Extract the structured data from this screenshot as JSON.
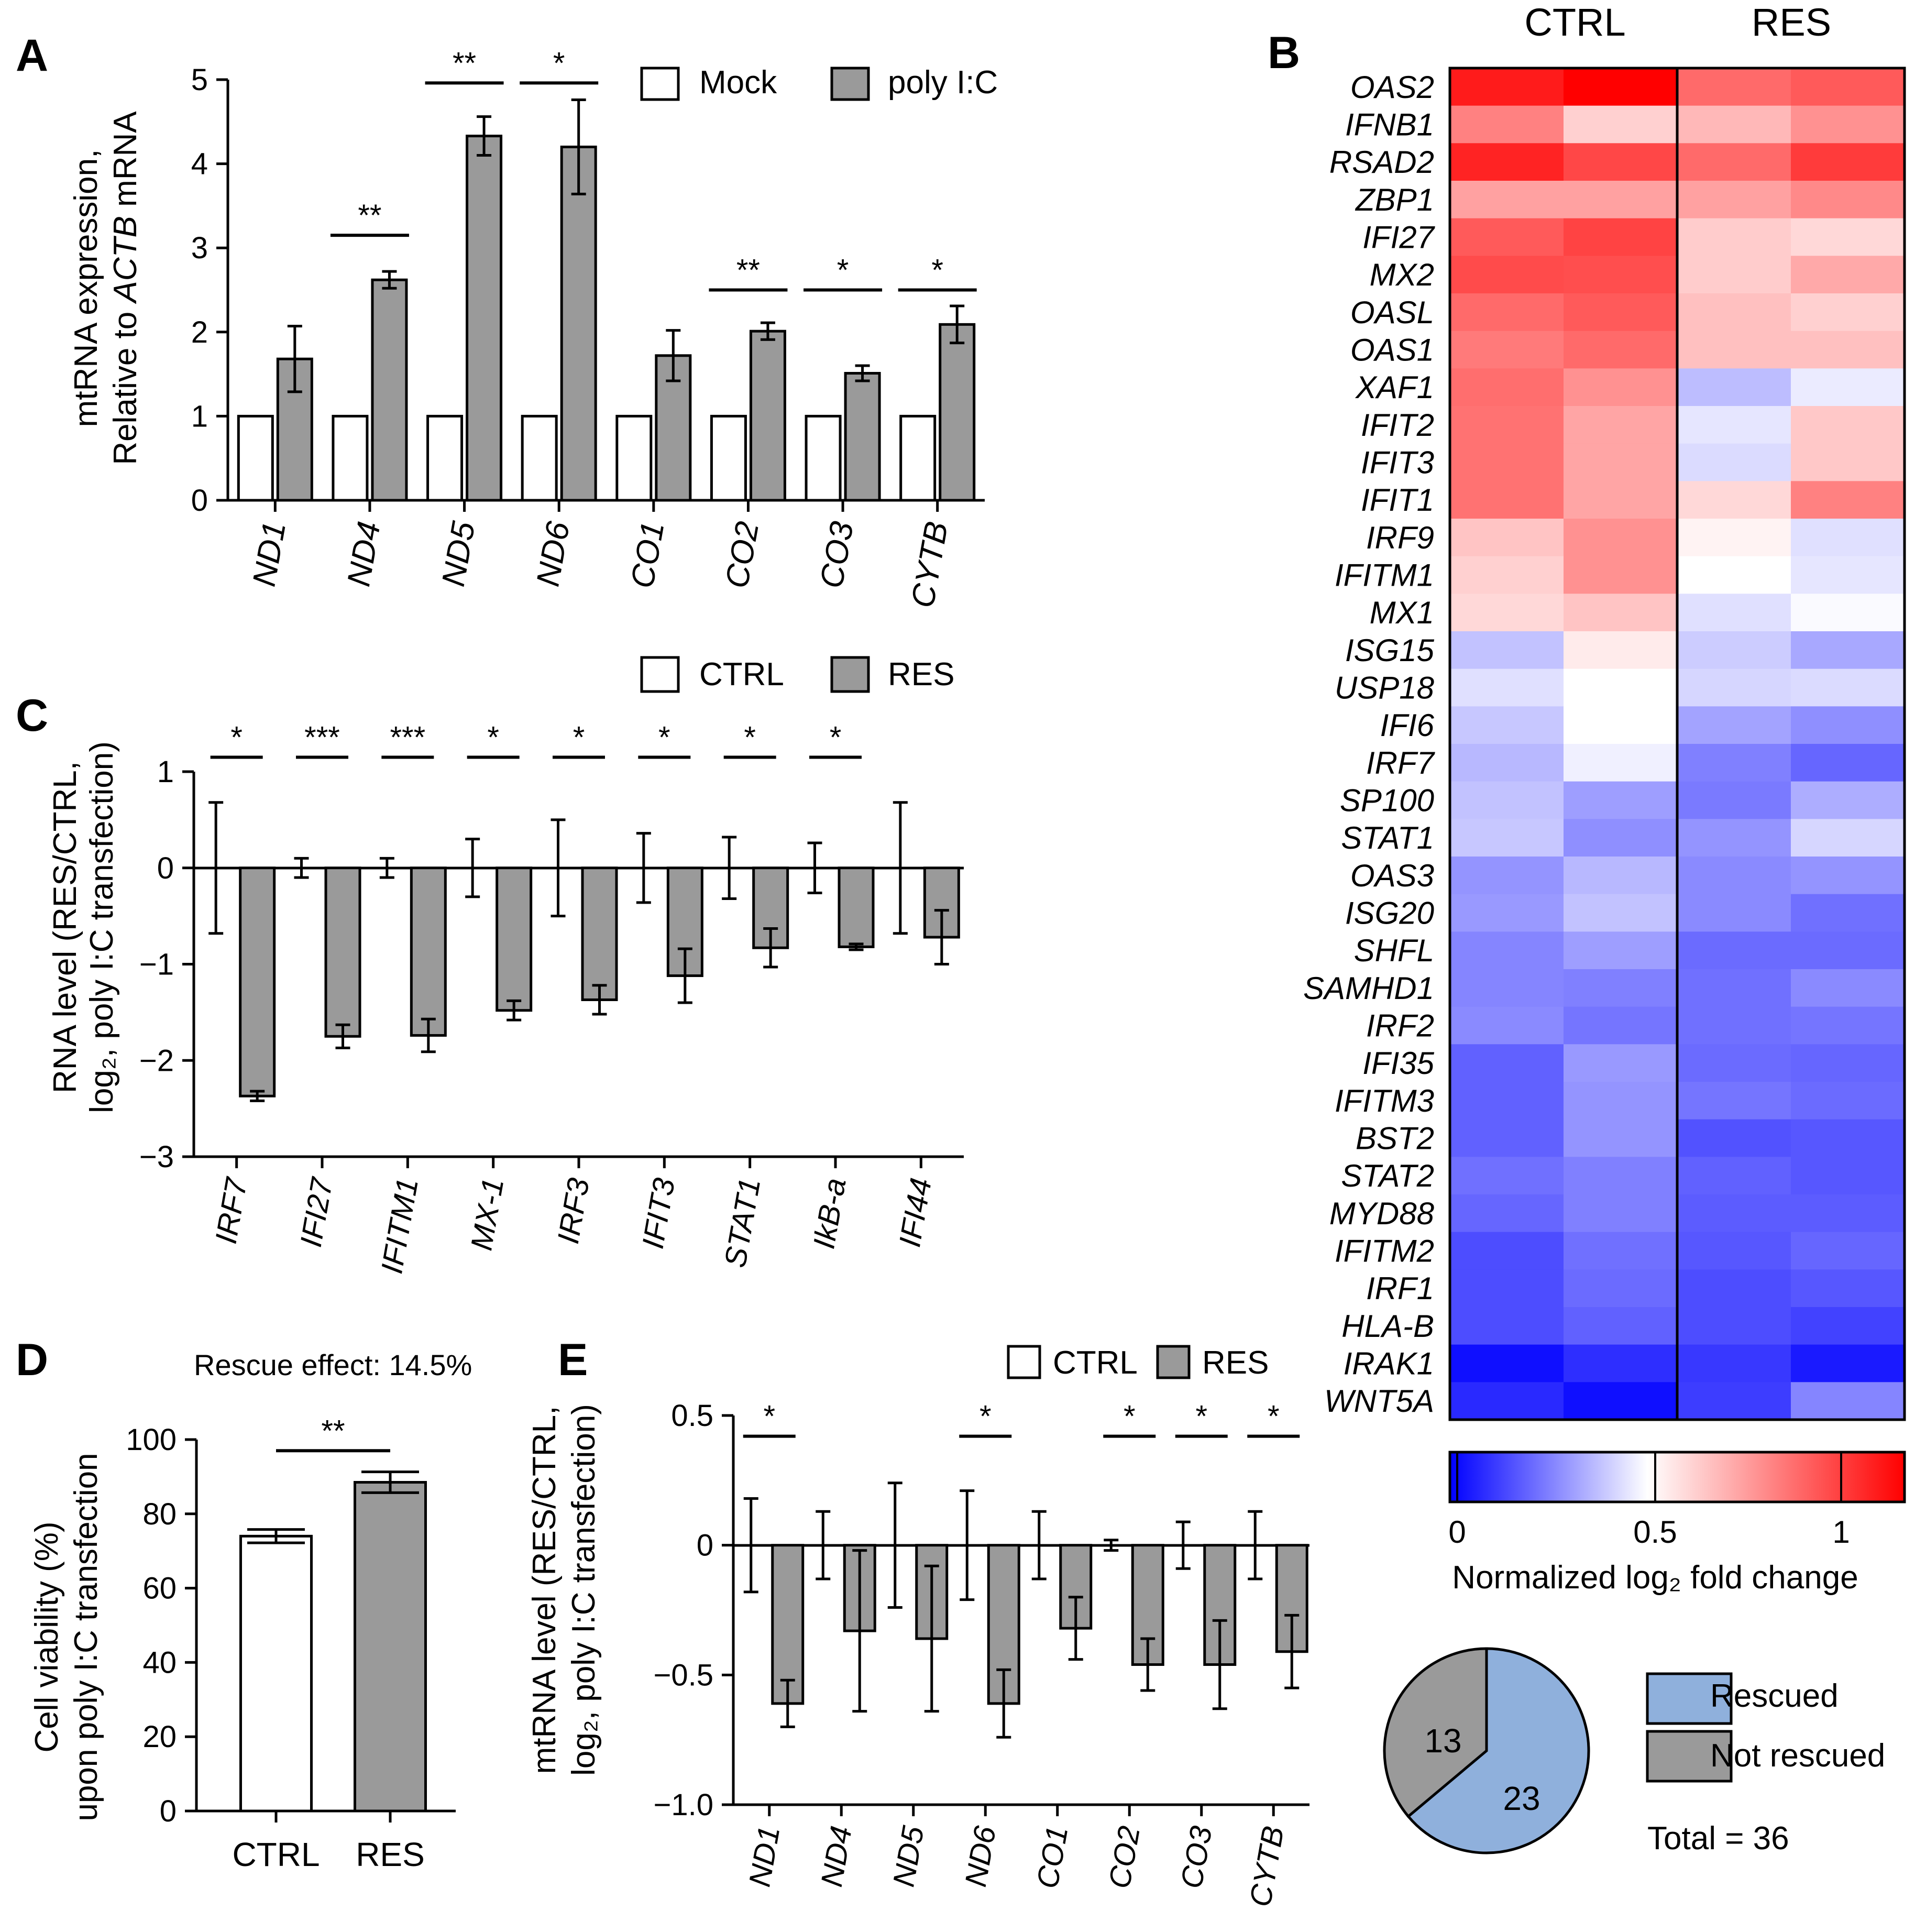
{
  "colors": {
    "white_bar": "#ffffff",
    "grey_bar": "#9a9a9a",
    "heat_low": "#0000ff",
    "heat_mid": "#ffffff",
    "heat_high": "#ff0000",
    "pie_rescued": "#8fb0dc",
    "pie_not_rescued": "#9a9a9a"
  },
  "chart_data": [
    {
      "panel": "A",
      "type": "bar",
      "ylabel_line1": "mtRNA expression,",
      "ylabel_line2_prefix": "Relative to ",
      "ylabel_line2_italic": "ACTB",
      "ylabel_line2_suffix": " mRNA",
      "ylim": [
        0,
        5
      ],
      "yticks": [
        "0",
        "1",
        "2",
        "3",
        "4",
        "5"
      ],
      "categories": [
        "ND1",
        "ND4",
        "ND5",
        "ND6",
        "CO1",
        "CO2",
        "CO3",
        "CYTB"
      ],
      "legend": [
        "Mock",
        "poly I:C"
      ],
      "series": [
        {
          "name": "Mock",
          "values": [
            1,
            1,
            1,
            1,
            1,
            1,
            1,
            1
          ],
          "errors": [
            0,
            0,
            0,
            0,
            0,
            0,
            0,
            0
          ]
        },
        {
          "name": "poly I:C",
          "values": [
            1.68,
            2.62,
            4.33,
            4.2,
            1.72,
            2.01,
            1.51,
            2.09
          ],
          "errors": [
            0.39,
            0.1,
            0.23,
            0.56,
            0.3,
            0.1,
            0.09,
            0.22
          ]
        }
      ],
      "significance": [
        "",
        "**",
        "**",
        "*",
        "",
        "**",
        "*",
        "*"
      ],
      "significance_levels": [
        0,
        3.15,
        4.96,
        4.96,
        0,
        2.5,
        2.5,
        2.5
      ]
    },
    {
      "panel": "B",
      "type": "heatmap",
      "column_groups": [
        "CTRL",
        "RES"
      ],
      "rows": [
        "OAS2",
        "IFNB1",
        "RSAD2",
        "ZBP1",
        "IFI27",
        "MX2",
        "OASL",
        "OAS1",
        "XAF1",
        "IFIT2",
        "IFIT3",
        "IFIT1",
        "IRF9",
        "IFITM1",
        "MX1",
        "ISG15",
        "USP18",
        "IFI6",
        "IRF7",
        "SP100",
        "STAT1",
        "OAS3",
        "ISG20",
        "SHFL",
        "SAMHD1",
        "IRF2",
        "IFI35",
        "IFITM3",
        "BST2",
        "STAT2",
        "MYD88",
        "IFITM2",
        "IRF1",
        "HLA-B",
        "IRAK1",
        "WNT5A"
      ],
      "values": [
        [
          1.08,
          1.15,
          0.88,
          0.92
        ],
        [
          0.82,
          0.62,
          0.68,
          0.78
        ],
        [
          1.06,
          0.97,
          0.88,
          1.0
        ],
        [
          0.74,
          0.74,
          0.74,
          0.8
        ],
        [
          0.92,
          0.98,
          0.63,
          0.6
        ],
        [
          0.96,
          0.95,
          0.63,
          0.72
        ],
        [
          0.88,
          0.92,
          0.66,
          0.62
        ],
        [
          0.84,
          0.88,
          0.66,
          0.66
        ],
        [
          0.87,
          0.78,
          0.37,
          0.46
        ],
        [
          0.86,
          0.73,
          0.45,
          0.64
        ],
        [
          0.86,
          0.73,
          0.43,
          0.64
        ],
        [
          0.86,
          0.73,
          0.6,
          0.82
        ],
        [
          0.65,
          0.78,
          0.53,
          0.44
        ],
        [
          0.62,
          0.78,
          0.5,
          0.45
        ],
        [
          0.6,
          0.65,
          0.44,
          0.49
        ],
        [
          0.38,
          0.55,
          0.4,
          0.33
        ],
        [
          0.44,
          0.5,
          0.42,
          0.43
        ],
        [
          0.39,
          0.5,
          0.32,
          0.28
        ],
        [
          0.36,
          0.47,
          0.25,
          0.2
        ],
        [
          0.38,
          0.31,
          0.24,
          0.34
        ],
        [
          0.39,
          0.28,
          0.29,
          0.42
        ],
        [
          0.29,
          0.36,
          0.27,
          0.29
        ],
        [
          0.3,
          0.38,
          0.27,
          0.22
        ],
        [
          0.26,
          0.31,
          0.21,
          0.21
        ],
        [
          0.26,
          0.25,
          0.22,
          0.27
        ],
        [
          0.27,
          0.23,
          0.22,
          0.23
        ],
        [
          0.19,
          0.3,
          0.21,
          0.2
        ],
        [
          0.19,
          0.29,
          0.23,
          0.21
        ],
        [
          0.19,
          0.29,
          0.16,
          0.17
        ],
        [
          0.22,
          0.25,
          0.19,
          0.17
        ],
        [
          0.2,
          0.25,
          0.18,
          0.18
        ],
        [
          0.15,
          0.22,
          0.17,
          0.2
        ],
        [
          0.15,
          0.21,
          0.15,
          0.17
        ],
        [
          0.15,
          0.19,
          0.15,
          0.13
        ],
        [
          0.03,
          0.09,
          0.11,
          0.05
        ],
        [
          0.08,
          0.03,
          0.12,
          0.26
        ]
      ],
      "colorbar_ticks": [
        "0",
        "0.5",
        "1"
      ],
      "colorbar_range": [
        0,
        1.15
      ],
      "colorbar_label": "Normalized log₂ fold change"
    },
    {
      "panel": "B-pie",
      "type": "pie",
      "slices": [
        {
          "name": "Rescued",
          "value": 23
        },
        {
          "name": "Not rescued",
          "value": 13
        }
      ],
      "total_label": "Total = 36"
    },
    {
      "panel": "C",
      "type": "bar",
      "ylabel_line1": "RNA level (RES/CTRL,",
      "ylabel_line2": "log₂, poly I:C transfection)",
      "ylim": [
        -3,
        1
      ],
      "yticks": [
        "−3",
        "−2",
        "−1",
        "0",
        "1"
      ],
      "categories": [
        "IRF7",
        "IFI27",
        "IFITM1",
        "MX-1",
        "IRF3",
        "IFIT3",
        "STAT1",
        "IkB-a",
        "IFI44"
      ],
      "legend": [
        "CTRL",
        "RES"
      ],
      "series": [
        {
          "name": "CTRL",
          "values": [
            0,
            0,
            0,
            0,
            0,
            0,
            0,
            0,
            0
          ],
          "errors": [
            0.68,
            0.1,
            0.1,
            0.3,
            0.5,
            0.36,
            0.32,
            0.26,
            0.68
          ]
        },
        {
          "name": "RES",
          "values": [
            -2.37,
            -1.75,
            -1.74,
            -1.48,
            -1.37,
            -1.12,
            -0.83,
            -0.82,
            -0.72
          ],
          "errors": [
            0.05,
            0.12,
            0.17,
            0.1,
            0.15,
            0.28,
            0.2,
            0.03,
            0.28
          ]
        }
      ],
      "significance": [
        "*",
        "***",
        "***",
        "*",
        "*",
        "*",
        "*",
        "*",
        ""
      ],
      "significance_level": 1.15
    },
    {
      "panel": "D",
      "type": "bar",
      "title": "Rescue effect: 14.5%",
      "ylabel_line1": "Cell viability (%)",
      "ylabel_line2": "upon poly I:C transfection",
      "ylim": [
        0,
        100
      ],
      "yticks": [
        "0",
        "20",
        "40",
        "60",
        "80",
        "100"
      ],
      "categories": [
        "CTRL",
        "RES"
      ],
      "values": [
        74,
        88.5
      ],
      "errors": [
        1.8,
        2.8
      ],
      "significance": "**",
      "significance_level": 97
    },
    {
      "panel": "E",
      "type": "bar",
      "ylabel_line1": "mtRNA level (RES/CTRL,",
      "ylabel_line2": "log₂, poly I:C transfection)",
      "ylim": [
        -1.0,
        0.5
      ],
      "yticks": [
        "−1.0",
        "−0.5",
        "0",
        "0.5"
      ],
      "categories": [
        "ND1",
        "ND4",
        "ND5",
        "ND6",
        "CO1",
        "CO2",
        "CO3",
        "CYTB"
      ],
      "legend": [
        "CTRL",
        "RES"
      ],
      "series": [
        {
          "name": "CTRL",
          "values": [
            0,
            0,
            0,
            0,
            0,
            0,
            0,
            0
          ],
          "errors": [
            0.18,
            0.13,
            0.24,
            0.21,
            0.13,
            0.02,
            0.09,
            0.13
          ]
        },
        {
          "name": "RES",
          "values": [
            -0.61,
            -0.33,
            -0.36,
            -0.61,
            -0.32,
            -0.46,
            -0.46,
            -0.41
          ],
          "errors": [
            0.09,
            0.31,
            0.28,
            0.13,
            0.12,
            0.1,
            0.17,
            0.14
          ]
        }
      ],
      "significance": [
        "*",
        "",
        "",
        "*",
        "",
        "*",
        "*",
        "*"
      ],
      "significance_level": 0.42
    }
  ],
  "labels": {
    "panel_a": "A",
    "panel_b": "B",
    "panel_c": "C",
    "panel_d": "D",
    "panel_e": "E",
    "ctrl_col": "CTRL",
    "res_col": "RES"
  }
}
